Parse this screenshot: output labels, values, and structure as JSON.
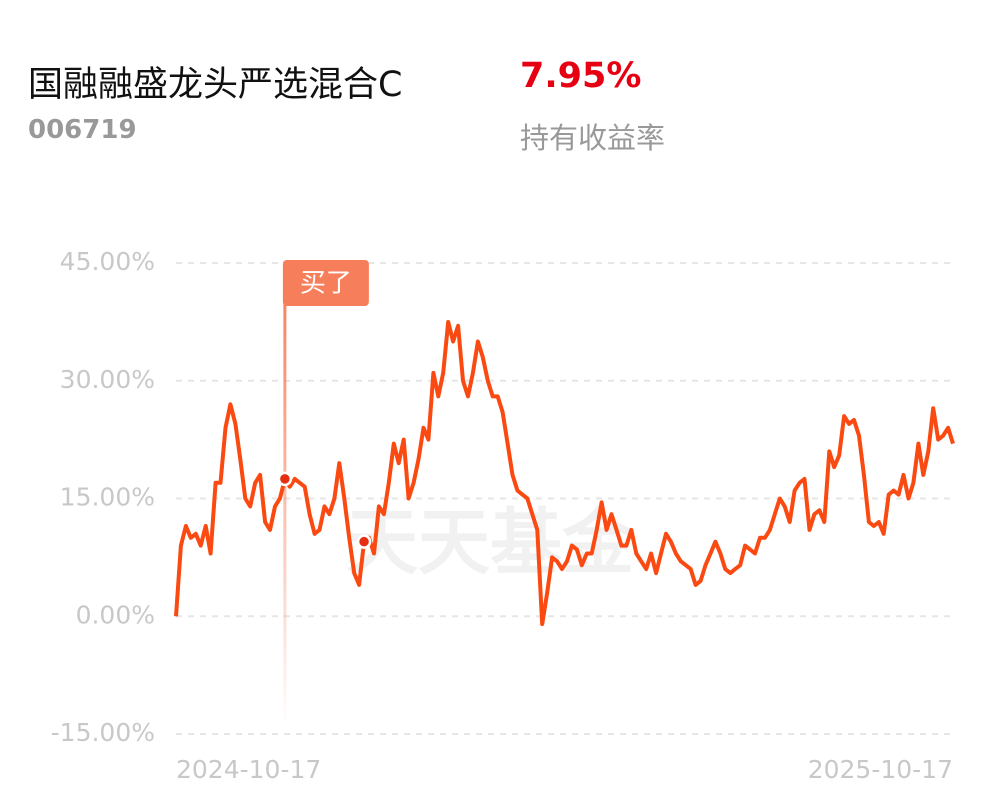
{
  "header": {
    "title": "国融融盛龙头严选混合C",
    "code": "006719",
    "return": "7.95%",
    "return_caption": "持有收益率"
  },
  "chart_data": {
    "type": "line",
    "watermark": "天天基金",
    "color": "#fa4a12",
    "categories": [
      "2024-10-17",
      null,
      null,
      null,
      null,
      null,
      null,
      null,
      null,
      null,
      null,
      null,
      null,
      null,
      null,
      null,
      null,
      null,
      null,
      null,
      null,
      null,
      null,
      null,
      null,
      null,
      null,
      null,
      null,
      null,
      null,
      null,
      null,
      null,
      null,
      null,
      null,
      null,
      null,
      null,
      null,
      null,
      null,
      null,
      null,
      null,
      null,
      null,
      null,
      null,
      null,
      null,
      null,
      null,
      null,
      null,
      null,
      null,
      null,
      null,
      null,
      null,
      null,
      null,
      null,
      null,
      null,
      null,
      null,
      null,
      null,
      null,
      null,
      null,
      null,
      null,
      null,
      null,
      null,
      null,
      null,
      null,
      null,
      null,
      null,
      null,
      null,
      null,
      null,
      null,
      null,
      null,
      null,
      null,
      null,
      null,
      null,
      null,
      null,
      null,
      null,
      null,
      null,
      null,
      null,
      null,
      null,
      null,
      null,
      null,
      null,
      null,
      null,
      null,
      null,
      null,
      null,
      null,
      null,
      null,
      null,
      null,
      null,
      null,
      null,
      null,
      null,
      null,
      null,
      null,
      null,
      null,
      null,
      null,
      null,
      null,
      null,
      null,
      null,
      null,
      null,
      null,
      null,
      null,
      null,
      null,
      null,
      null,
      null,
      null,
      null,
      null,
      null,
      null,
      null,
      null,
      null,
      "2025-10-17"
    ],
    "values": [
      0,
      9,
      11.5,
      10,
      10.5,
      9,
      11.5,
      8,
      17,
      17,
      24,
      27,
      24.5,
      20,
      15,
      14,
      17,
      18,
      12,
      11,
      14,
      15,
      17.5,
      16.5,
      17.5,
      17,
      16.5,
      13,
      10.5,
      11,
      14,
      13,
      15,
      19.5,
      15,
      10,
      5.5,
      4,
      9.5,
      10,
      8,
      14,
      13,
      17,
      22,
      19.5,
      22.5,
      15,
      17,
      20,
      24,
      22.5,
      31,
      28,
      31,
      37.5,
      35,
      37,
      30,
      28,
      31,
      35,
      33,
      30,
      28,
      28,
      26,
      22,
      18,
      16,
      15.5,
      15,
      13,
      11,
      -1,
      3,
      7.5,
      7,
      6,
      7,
      9,
      8.5,
      6.5,
      8,
      8,
      11,
      14.5,
      11,
      13,
      11,
      9,
      9,
      11,
      8,
      7,
      6,
      8,
      5.5,
      8,
      10.5,
      9.5,
      8,
      7,
      6.5,
      6,
      4,
      4.5,
      6.5,
      8,
      9.5,
      8,
      6,
      5.5,
      6,
      6.5,
      9,
      8.5,
      8,
      10,
      10,
      11,
      13,
      15,
      14,
      12,
      16,
      17,
      17.5,
      11,
      13,
      13.5,
      12,
      21,
      19,
      20.5,
      25.5,
      24.5,
      25,
      23,
      18,
      12,
      11.5,
      12,
      10.5,
      15.5,
      16,
      15.5,
      18,
      15,
      17,
      22,
      18,
      21,
      26.5,
      22.5,
      23,
      24,
      22
    ],
    "ylim": [
      -15,
      45
    ],
    "yticks": [
      {
        "value": 45,
        "label": "45.00%"
      },
      {
        "value": 30,
        "label": "30.00%"
      },
      {
        "value": 15,
        "label": "15.00%"
      },
      {
        "value": 0,
        "label": "0.00%"
      },
      {
        "value": -15,
        "label": "-15.00%"
      }
    ],
    "grid": true,
    "annotations": [
      {
        "text": "买了",
        "index": 22
      }
    ],
    "markers": [
      22,
      38
    ]
  }
}
